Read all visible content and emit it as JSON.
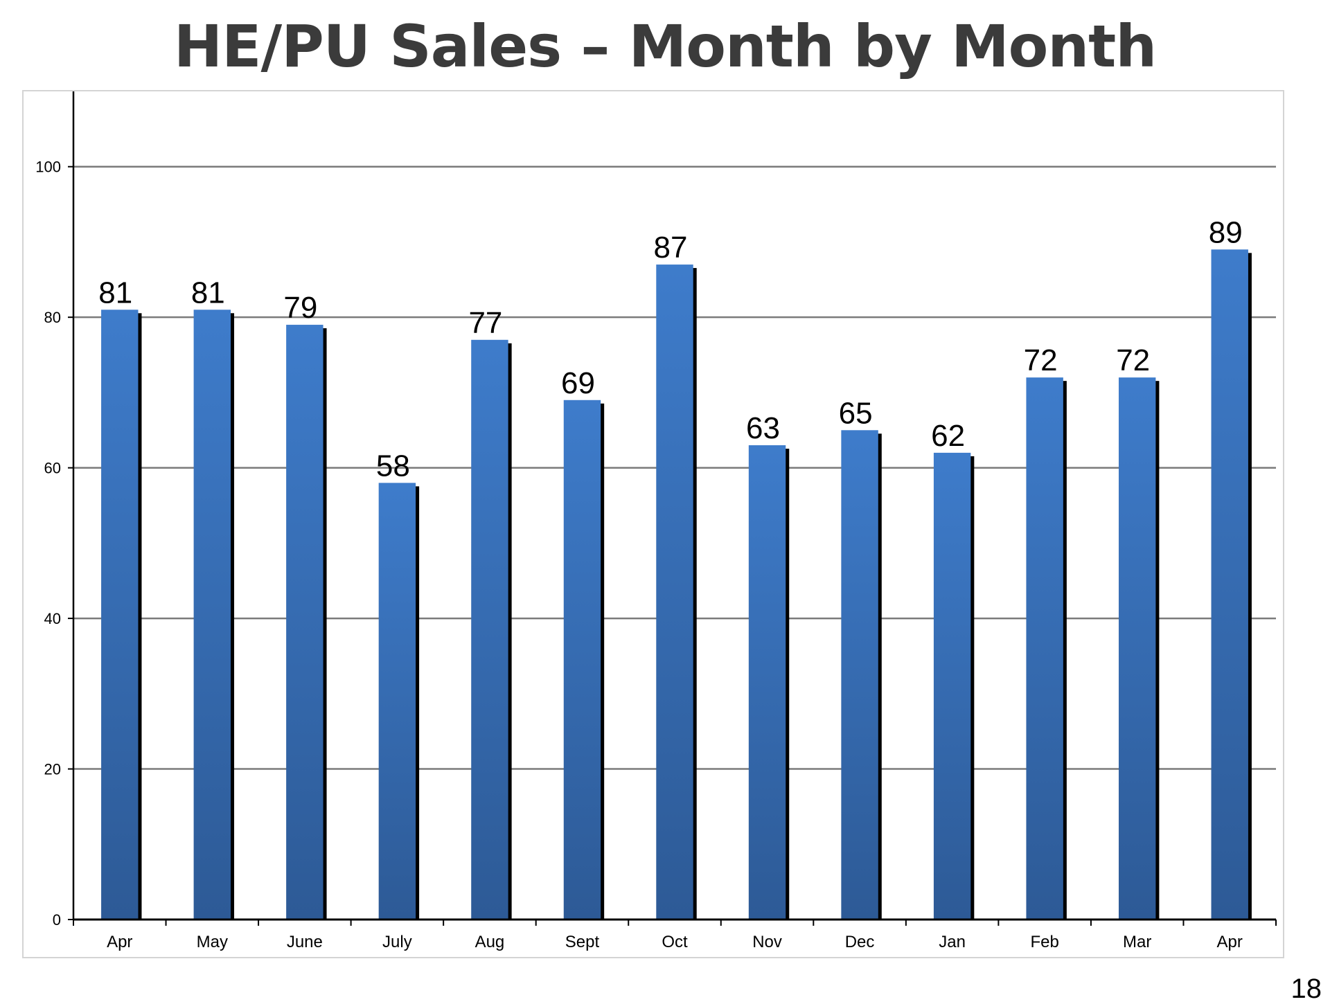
{
  "title": "HE/PU Sales – Month by Month",
  "page_number": "18",
  "colors": {
    "bar_top": "#3e7ccb",
    "bar_bottom": "#2d5a96",
    "bar_shadow": "#000000",
    "grid": "#7a7a7a",
    "axis": "#000000",
    "title": "#3b3b3b"
  },
  "chart_data": {
    "type": "bar",
    "title": "",
    "xlabel": "",
    "ylabel": "",
    "categories": [
      "Apr",
      "May",
      "June",
      "July",
      "Aug",
      "Sept",
      "Oct",
      "Nov",
      "Dec",
      "Jan",
      "Feb",
      "Mar",
      "Apr"
    ],
    "values": [
      81,
      81,
      79,
      58,
      77,
      69,
      87,
      63,
      65,
      62,
      72,
      72,
      89
    ],
    "ylim": [
      0,
      110
    ],
    "yticks": [
      0,
      20,
      40,
      60,
      80,
      100
    ],
    "grid": true,
    "legend": "none",
    "data_labels": true
  }
}
